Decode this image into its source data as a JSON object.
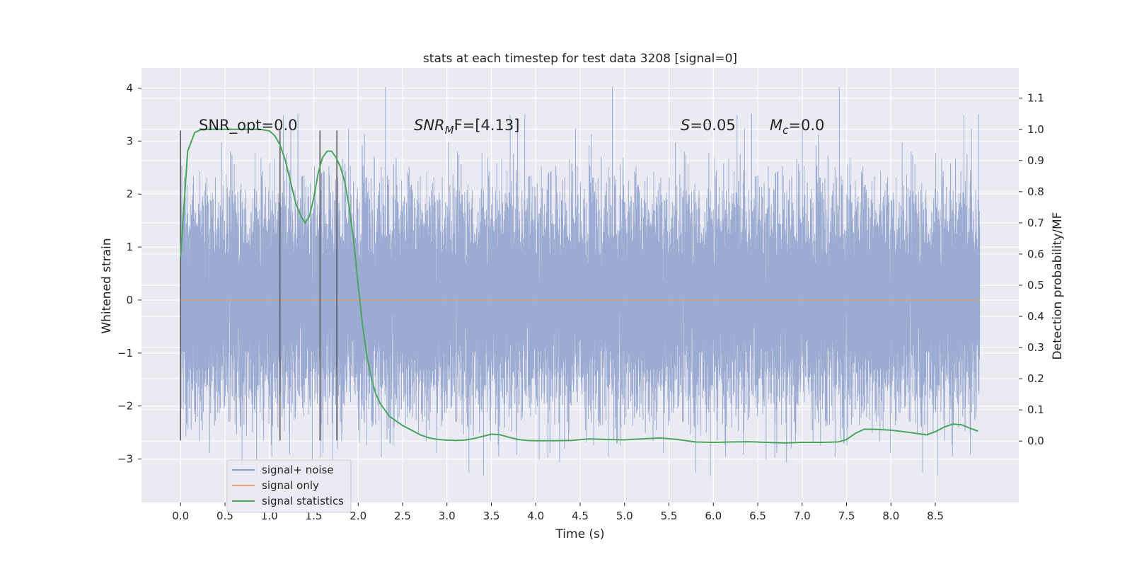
{
  "chart_data": {
    "type": "line",
    "title": "stats at each timestep for test data 3208 [signal=0]",
    "xlabel": "Time (s)",
    "ylabel_left": "Whitened strain",
    "ylabel_right": "Detection probability/MF",
    "xlim": [
      -0.44,
      9.44
    ],
    "ylim_left": [
      -3.82,
      4.38
    ],
    "ylim_right": [
      -0.197,
      1.197
    ],
    "x_ticks": [
      "0.0",
      "0.5",
      "1.0",
      "1.5",
      "2.0",
      "2.5",
      "3.0",
      "3.5",
      "4.0",
      "4.5",
      "5.0",
      "5.5",
      "6.0",
      "6.5",
      "7.0",
      "7.5",
      "8.0",
      "8.5"
    ],
    "x_tick_values": [
      0,
      0.5,
      1,
      1.5,
      2,
      2.5,
      3,
      3.5,
      4,
      4.5,
      5,
      5.5,
      6,
      6.5,
      7,
      7.5,
      8,
      8.5
    ],
    "y_ticks_left": [
      "−3",
      "−2",
      "−1",
      "0",
      "1",
      "2",
      "3",
      "4"
    ],
    "y_tick_values_left": [
      -3,
      -2,
      -1,
      0,
      1,
      2,
      3,
      4
    ],
    "y_ticks_right": [
      "0.0",
      "0.1",
      "0.2",
      "0.3",
      "0.4",
      "0.5",
      "0.6",
      "0.7",
      "0.8",
      "0.9",
      "1.0",
      "1.1"
    ],
    "y_tick_values_right": [
      0,
      0.1,
      0.2,
      0.3,
      0.4,
      0.5,
      0.6,
      0.7,
      0.8,
      0.9,
      1.0,
      1.1
    ],
    "grid": true,
    "legend_position": "lower-left",
    "annotations": {
      "snr_opt": "SNR_opt=0.0",
      "snr_mf_main": "SNR",
      "snr_mf_sub": "M",
      "snr_mf_tail": "F=[4.13]",
      "s_var": "S",
      "s_val": "=0.05",
      "mc_var": "M",
      "mc_sub": "c",
      "mc_val": "=0.0"
    },
    "series": [
      {
        "name": "signal+ noise",
        "axis": "left",
        "color": "#8da0cb",
        "duration": 9.0,
        "sample_rate": 2048,
        "std": 0.98,
        "range": [
          -3.45,
          4.02
        ]
      },
      {
        "name": "signal only",
        "axis": "left",
        "color": "#e8a07e",
        "x": [
          0,
          9.0
        ],
        "y": [
          0,
          0
        ]
      },
      {
        "name": "signal statistics",
        "axis": "right",
        "color": "#4aa55e",
        "x": [
          0,
          0.08,
          0.16,
          0.24,
          0.32,
          0.4,
          0.5,
          0.6,
          0.7,
          0.8,
          0.9,
          1.0,
          1.06,
          1.12,
          1.18,
          1.24,
          1.3,
          1.36,
          1.4,
          1.45,
          1.5,
          1.55,
          1.6,
          1.65,
          1.7,
          1.75,
          1.8,
          1.85,
          1.9,
          1.95,
          2.0,
          2.05,
          2.1,
          2.15,
          2.2,
          2.25,
          2.3,
          2.35,
          2.4,
          2.5,
          2.6,
          2.7,
          2.8,
          2.9,
          3.0,
          3.1,
          3.2,
          3.3,
          3.4,
          3.5,
          3.6,
          3.7,
          3.8,
          3.9,
          4.0,
          4.2,
          4.4,
          4.6,
          4.8,
          5.0,
          5.2,
          5.4,
          5.6,
          5.8,
          6.0,
          6.2,
          6.4,
          6.6,
          6.8,
          7.0,
          7.2,
          7.4,
          7.5,
          7.6,
          7.7,
          7.8,
          8.0,
          8.2,
          8.4,
          8.5,
          8.6,
          8.7,
          8.8,
          8.9,
          8.98
        ],
        "y": [
          0.59,
          0.93,
          0.99,
          1.0,
          1.0,
          1.0,
          1.0,
          1.0,
          1.0,
          1.0,
          1.0,
          0.995,
          0.98,
          0.95,
          0.9,
          0.83,
          0.76,
          0.72,
          0.7,
          0.72,
          0.78,
          0.86,
          0.91,
          0.93,
          0.93,
          0.91,
          0.88,
          0.83,
          0.75,
          0.64,
          0.5,
          0.37,
          0.27,
          0.2,
          0.15,
          0.12,
          0.1,
          0.08,
          0.07,
          0.05,
          0.035,
          0.02,
          0.01,
          0.005,
          0.003,
          0.002,
          0.003,
          0.008,
          0.015,
          0.022,
          0.02,
          0.012,
          0.005,
          0.002,
          0.001,
          0.001,
          0.002,
          0.007,
          0.005,
          0.004,
          0.007,
          0.01,
          0.005,
          -0.003,
          -0.004,
          -0.003,
          -0.002,
          -0.004,
          -0.006,
          -0.004,
          -0.004,
          -0.003,
          0.005,
          0.025,
          0.038,
          0.038,
          0.035,
          0.028,
          0.02,
          0.03,
          0.045,
          0.055,
          0.052,
          0.04,
          0.032
        ]
      }
    ],
    "vertical_markers": {
      "x": [
        0,
        1.12,
        1.57,
        1.76
      ],
      "y_range": [
        -2.65,
        3.2
      ]
    }
  }
}
